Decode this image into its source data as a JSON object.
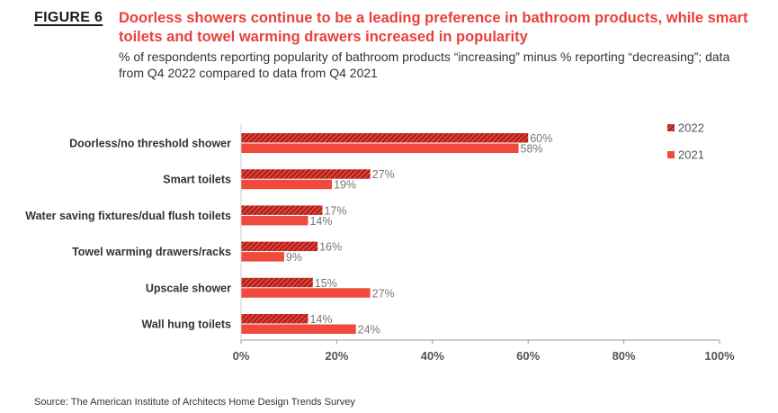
{
  "figure": {
    "label": "FIGURE 6",
    "title": "Doorless showers continue to be a leading preference in bathroom products, while smart toilets and towel warming drawers increased in popularity",
    "subtitle": "% of respondents reporting popularity of bathroom products “increasing” minus % reporting “decreasing”; data from Q4 2022 compared to data from Q4 2021",
    "source": "Source: The American Institute of Architects Home Design Trends Survey"
  },
  "colors": {
    "accent": "#e8403a",
    "series_2022": "#c0302a",
    "series_2021": "#f04a3e",
    "axis": "#999999"
  },
  "chart_data": {
    "type": "bar",
    "orientation": "horizontal",
    "categories": [
      "Doorless/no threshold shower",
      "Smart toilets",
      "Water saving fixtures/dual flush toilets",
      "Towel warming drawers/racks",
      "Upscale shower",
      "Wall hung toilets"
    ],
    "series": [
      {
        "name": "2022",
        "pattern": "hatched",
        "values": [
          60,
          27,
          17,
          16,
          15,
          14
        ]
      },
      {
        "name": "2021",
        "pattern": "solid",
        "values": [
          58,
          19,
          14,
          9,
          27,
          24
        ]
      }
    ],
    "xlim": [
      0,
      100
    ],
    "ticks": [
      0,
      20,
      40,
      60,
      80,
      100
    ],
    "tick_labels": [
      "0%",
      "20%",
      "40%",
      "60%",
      "80%",
      "100%"
    ],
    "value_suffix": "%",
    "legend_position": "top-right",
    "grid": false
  }
}
